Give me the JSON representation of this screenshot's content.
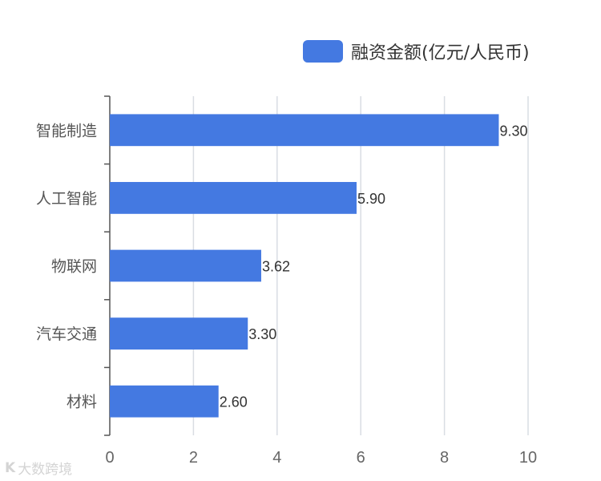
{
  "chart_data": {
    "type": "bar",
    "orientation": "horizontal",
    "categories": [
      "智能制造",
      "人工智能",
      "物联网",
      "汽车交通",
      "材料"
    ],
    "series": [
      {
        "name": "融资金额(亿元/人民币)",
        "values": [
          9.3,
          5.9,
          3.62,
          3.3,
          2.6
        ]
      }
    ],
    "data_labels": [
      "9.30",
      "5.90",
      "3.62",
      "3.30",
      "2.60"
    ],
    "x_ticks": [
      "0",
      "2",
      "4",
      "6",
      "8",
      "10"
    ],
    "xlim": [
      0,
      10
    ],
    "grid": "vertical",
    "legend_position": "top-right",
    "colors": {
      "bar": "#4479e1",
      "grid": "#d9dde3",
      "axis": "#555555",
      "text": "#555555"
    }
  },
  "watermark": {
    "logo": "K",
    "text": "大数跨境"
  }
}
